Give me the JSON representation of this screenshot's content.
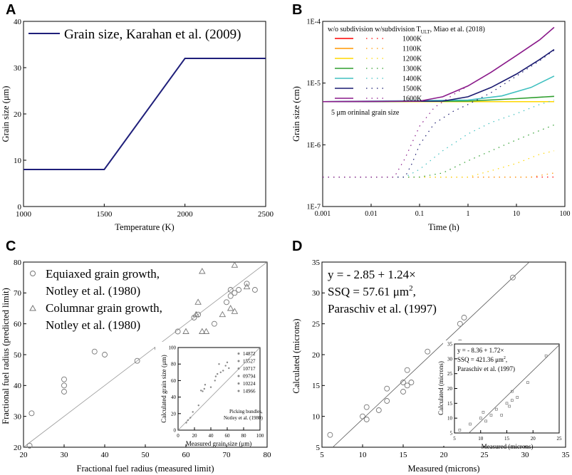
{
  "panels": {
    "A": "A",
    "B": "B",
    "C": "C",
    "D": "D"
  },
  "chart_data": [
    {
      "id": "A",
      "type": "line",
      "title": "",
      "xlabel": "Temperature (K)",
      "ylabel": "Grain size (μm)",
      "xlim": [
        1000,
        2500
      ],
      "ylim": [
        0,
        40
      ],
      "xticks": [
        "1000",
        "1500",
        "2000",
        "2500"
      ],
      "yticks": [
        "0",
        "10",
        "20",
        "30",
        "40"
      ],
      "series": [
        {
          "name": "Grain size, Karahan et al. (2009)",
          "color": "#1f1f7a",
          "x": [
            1000,
            1500,
            2000,
            2500
          ],
          "y": [
            8,
            8,
            32,
            32
          ]
        }
      ]
    },
    {
      "id": "B",
      "type": "line",
      "xlabel": "Time (h)",
      "ylabel": "Grain size (cm)",
      "xscale": "log",
      "yscale": "log",
      "xlim": [
        0.001,
        100
      ],
      "ylim": [
        1e-07,
        0.0001
      ],
      "xticks": [
        "0.001",
        "0.01",
        "0.1",
        "1",
        "10",
        "100"
      ],
      "yticks": [
        "1E-7",
        "1E-6",
        "1E-5",
        "1E-4"
      ],
      "legend_header": "w/o subdivision  w/subdivision T",
      "legend_header_sub": "ULT",
      "legend_header_tail": ", Miao et al. (2018)",
      "annotation": "5 μm orininal grain size",
      "series": [
        {
          "name": "1000K",
          "color": "#ff0000",
          "solid": [
            [
              0.001,
              5e-06
            ],
            [
              60,
              5e-06
            ]
          ],
          "dotted": [
            [
              0.001,
              3e-07
            ],
            [
              60,
              3e-07
            ]
          ]
        },
        {
          "name": "1100K",
          "color": "#ff9900",
          "solid": [
            [
              0.001,
              5e-06
            ],
            [
              60,
              5e-06
            ]
          ],
          "dotted": [
            [
              0.001,
              3e-07
            ],
            [
              20,
              3e-07
            ],
            [
              60,
              3.5e-07
            ]
          ]
        },
        {
          "name": "1200K",
          "color": "#ffd700",
          "solid": [
            [
              0.001,
              5e-06
            ],
            [
              60,
              5e-06
            ]
          ],
          "dotted": [
            [
              0.001,
              3e-07
            ],
            [
              1,
              3e-07
            ],
            [
              3,
              3.8e-07
            ],
            [
              10,
              5e-07
            ],
            [
              30,
              7e-07
            ],
            [
              60,
              8e-07
            ]
          ]
        },
        {
          "name": "1300K",
          "color": "#2e9e2e",
          "solid": [
            [
              0.001,
              5e-06
            ],
            [
              1,
              5.1e-06
            ],
            [
              10,
              5.6e-06
            ],
            [
              60,
              6.1e-06
            ]
          ],
          "dotted": [
            [
              0.001,
              3e-07
            ],
            [
              0.1,
              3e-07
            ],
            [
              0.3,
              3.5e-07
            ],
            [
              1,
              5.5e-07
            ],
            [
              3,
              8e-07
            ],
            [
              10,
              1.2e-06
            ],
            [
              30,
              1.7e-06
            ],
            [
              60,
              2.1e-06
            ]
          ]
        },
        {
          "name": "1400K",
          "color": "#40c0c0",
          "solid": [
            [
              0.001,
              5e-06
            ],
            [
              1,
              5.3e-06
            ],
            [
              5,
              6.2e-06
            ],
            [
              20,
              8.5e-06
            ],
            [
              60,
              1.3e-05
            ]
          ],
          "dotted": [
            [
              0.001,
              3e-07
            ],
            [
              0.05,
              3e-07
            ],
            [
              0.1,
              4e-07
            ],
            [
              0.3,
              8e-07
            ],
            [
              1,
              1.5e-06
            ],
            [
              3,
              2.3e-06
            ],
            [
              10,
              3.2e-06
            ],
            [
              30,
              4.5e-06
            ],
            [
              60,
              5.3e-06
            ]
          ]
        },
        {
          "name": "1500K",
          "color": "#1a1a70",
          "solid": [
            [
              0.001,
              5e-06
            ],
            [
              0.3,
              5.1e-06
            ],
            [
              1,
              6e-06
            ],
            [
              3,
              8.5e-06
            ],
            [
              10,
              1.4e-05
            ],
            [
              30,
              2.4e-05
            ],
            [
              60,
              3.5e-05
            ]
          ],
          "dotted": [
            [
              0.001,
              3e-07
            ],
            [
              0.05,
              3e-07
            ],
            [
              0.07,
              5e-07
            ],
            [
              0.1,
              1e-06
            ],
            [
              0.2,
              2.2e-06
            ],
            [
              0.5,
              3.5e-06
            ],
            [
              1,
              4.5e-06
            ],
            [
              3,
              7e-06
            ],
            [
              10,
              1.3e-05
            ],
            [
              30,
              2.3e-05
            ],
            [
              60,
              3.4e-05
            ]
          ]
        },
        {
          "name": "1600K",
          "color": "#8a1a8a",
          "solid": [
            [
              0.001,
              5e-06
            ],
            [
              0.1,
              5.1e-06
            ],
            [
              0.3,
              6e-06
            ],
            [
              1,
              9e-06
            ],
            [
              3,
              1.5e-05
            ],
            [
              10,
              2.8e-05
            ],
            [
              30,
              5e-05
            ],
            [
              60,
              8e-05
            ]
          ],
          "dotted": [
            [
              0.001,
              3e-07
            ],
            [
              0.03,
              3e-07
            ],
            [
              0.05,
              6e-07
            ],
            [
              0.1,
              2e-06
            ],
            [
              0.2,
              4e-06
            ],
            [
              0.5,
              6.5e-06
            ],
            [
              1,
              9e-06
            ],
            [
              3,
              1.5e-05
            ],
            [
              10,
              2.8e-05
            ],
            [
              30,
              5e-05
            ],
            [
              60,
              8e-05
            ]
          ]
        }
      ]
    },
    {
      "id": "C",
      "type": "scatter",
      "xlabel": "Fractional fuel radius (measured limit)",
      "ylabel": "Fractional fuel radius (predicted limit)",
      "xlim": [
        20,
        80
      ],
      "ylim": [
        20,
        80
      ],
      "xticks": [
        "20",
        "30",
        "40",
        "50",
        "60",
        "70",
        "80"
      ],
      "yticks": [
        "20",
        "30",
        "40",
        "50",
        "60",
        "70",
        "80"
      ],
      "legend": [
        {
          "marker": "circle",
          "line1": "Equiaxed grain growth,",
          "line2": "Notley et al. (1980)"
        },
        {
          "marker": "triangle",
          "line1": "Columnar grain growth,",
          "line2": "Notley et al. (1980)"
        }
      ],
      "equiaxed": [
        [
          21.5,
          20.5
        ],
        [
          22,
          31
        ],
        [
          30,
          38
        ],
        [
          30,
          40
        ],
        [
          30,
          42
        ],
        [
          37.5,
          51
        ],
        [
          40,
          50
        ],
        [
          48,
          48
        ],
        [
          53,
          52
        ],
        [
          58,
          57.5
        ],
        [
          62,
          62
        ],
        [
          63,
          63
        ],
        [
          67,
          60
        ],
        [
          70,
          67
        ],
        [
          71,
          71
        ],
        [
          71,
          69
        ],
        [
          72,
          70
        ],
        [
          73,
          71
        ],
        [
          75,
          73
        ],
        [
          77,
          71
        ]
      ],
      "columnar": [
        [
          60,
          57.5
        ],
        [
          62.5,
          63
        ],
        [
          63,
          67
        ],
        [
          64,
          77
        ],
        [
          64,
          57.5
        ],
        [
          65,
          57.5
        ],
        [
          69,
          63
        ],
        [
          71,
          65
        ],
        [
          72,
          79
        ],
        [
          72,
          64
        ],
        [
          75,
          72
        ]
      ],
      "inset": {
        "xlabel": "Measured grain size (μm)",
        "ylabel": "Calculated grain size (μm)",
        "xlim": [
          0,
          100
        ],
        "ylim": [
          0,
          100
        ],
        "xticks": [
          "0",
          "20",
          "40",
          "60",
          "80",
          "100"
        ],
        "yticks": [
          "0",
          "20",
          "40",
          "60",
          "80",
          "100"
        ],
        "legend": [
          "14872",
          "15527",
          "10717",
          "09794",
          "10224",
          "14966"
        ],
        "note1": "Picking bundles,",
        "note2": "Notley et al. (1980)",
        "points": [
          [
            10,
            9
          ],
          [
            12,
            12
          ],
          [
            15,
            15
          ],
          [
            18,
            22
          ],
          [
            25,
            30
          ],
          [
            28,
            48
          ],
          [
            30,
            47
          ],
          [
            32,
            50
          ],
          [
            33,
            55
          ],
          [
            40,
            52
          ],
          [
            45,
            60
          ],
          [
            46,
            65
          ],
          [
            48,
            68
          ],
          [
            50,
            80
          ],
          [
            52,
            70
          ],
          [
            55,
            72
          ],
          [
            58,
            78
          ],
          [
            60,
            82
          ],
          [
            62,
            75
          ]
        ]
      }
    },
    {
      "id": "D",
      "type": "scatter",
      "xlabel": "Measured (microns)",
      "ylabel": "Calculated (microns)",
      "xlim": [
        5,
        35
      ],
      "ylim": [
        5,
        35
      ],
      "xticks": [
        "5",
        "10",
        "15",
        "20",
        "25",
        "30",
        "35"
      ],
      "yticks": [
        "5",
        "10",
        "15",
        "20",
        "25",
        "30",
        "35"
      ],
      "eq_line1": "y = - 2.85 + 1.24×",
      "eq_line2": "SSQ = 57.61 μm",
      "eq_line2_sup": "2",
      "eq_line2_tail": ",",
      "eq_line3": "Paraschiv et al. (1997)",
      "fit": {
        "intercept": -2.85,
        "slope": 1.24
      },
      "points": [
        [
          6,
          7
        ],
        [
          10,
          10
        ],
        [
          10.5,
          9.5
        ],
        [
          10.5,
          11.5
        ],
        [
          12,
          11
        ],
        [
          13,
          12.5
        ],
        [
          13,
          14.5
        ],
        [
          15,
          14
        ],
        [
          15,
          15.5
        ],
        [
          15.5,
          15
        ],
        [
          15.5,
          17.5
        ],
        [
          16,
          15.5
        ],
        [
          18,
          20.5
        ],
        [
          22,
          22
        ],
        [
          22,
          25
        ],
        [
          22.5,
          26
        ],
        [
          28.5,
          32.5
        ]
      ],
      "inset": {
        "xlabel": "Measured (microns)",
        "ylabel": "Calculated (microns)",
        "xlim": [
          5,
          25
        ],
        "ylim": [
          5,
          35
        ],
        "xticks": [
          "5",
          "10",
          "15",
          "20",
          "25"
        ],
        "yticks": [
          "5",
          "10",
          "15",
          "20",
          "25",
          "30",
          "35"
        ],
        "eq_line1": "y = - 8.36 + 1.72×",
        "eq_line2": "SSQ = 421.36 μm",
        "eq_line2_sup": "2",
        "eq_line2_tail": ",",
        "eq_line3": "Paraschiv et al. (1997)",
        "fit": {
          "intercept": -8.36,
          "slope": 1.72
        },
        "points": [
          [
            6,
            6
          ],
          [
            8,
            8
          ],
          [
            10,
            10
          ],
          [
            10.5,
            12
          ],
          [
            11,
            9
          ],
          [
            12,
            11
          ],
          [
            13,
            13
          ],
          [
            14,
            11
          ],
          [
            15,
            15
          ],
          [
            15.5,
            14
          ],
          [
            16,
            16
          ],
          [
            16,
            19
          ],
          [
            17,
            17
          ],
          [
            19,
            22
          ],
          [
            22.5,
            31
          ]
        ]
      }
    }
  ]
}
